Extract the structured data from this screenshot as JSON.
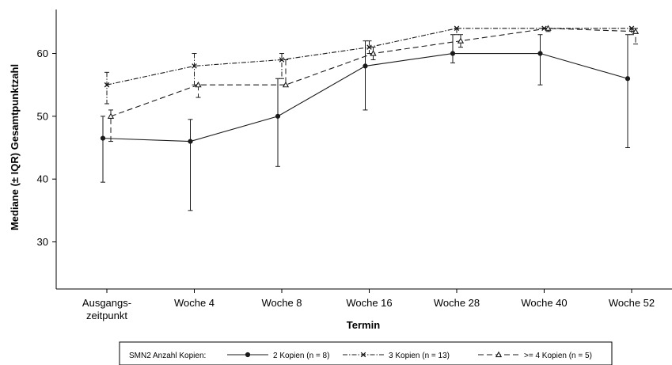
{
  "chart_data": {
    "type": "line",
    "title": "",
    "xlabel": "Termin",
    "ylabel": "Mediane (± IQR) Gesamtpunktzahl",
    "ylim": [
      22.5,
      67
    ],
    "y_ticks": [
      30,
      40,
      50,
      60
    ],
    "grid": false,
    "categories": [
      [
        "Ausgangs-",
        "zeitpunkt"
      ],
      [
        "Woche 4"
      ],
      [
        "Woche 8"
      ],
      [
        "Woche 16"
      ],
      [
        "Woche 28"
      ],
      [
        "Woche 40"
      ],
      [
        "Woche 52"
      ]
    ],
    "legend": {
      "title": "SMN2 Anzahl Kopien:",
      "position": "bottom"
    },
    "series": [
      {
        "name": "2 Kopien (n = 8)",
        "marker": "circle",
        "dash": "solid",
        "color": "#1a1a1a",
        "values": [
          46.5,
          46,
          50,
          58,
          60,
          60,
          56
        ],
        "iqr_low": [
          39.5,
          35,
          42,
          51,
          58.5,
          55,
          45
        ],
        "iqr_high": [
          50,
          49.5,
          56,
          62,
          63,
          63,
          63
        ]
      },
      {
        "name": "3 Kopien (n = 13)",
        "marker": "x",
        "dash": "dashdot",
        "color": "#1a1a1a",
        "values": [
          55,
          58,
          59,
          61,
          64,
          64,
          64
        ],
        "iqr_low": [
          52,
          55,
          56,
          60,
          63,
          64,
          63
        ],
        "iqr_high": [
          57,
          60,
          60,
          62,
          64,
          64,
          64
        ]
      },
      {
        "name": ">= 4 Kopien (n = 5)",
        "marker": "triangle",
        "dash": "dashed",
        "color": "#1a1a1a",
        "values": [
          50,
          55,
          55,
          60,
          62,
          64,
          63.5
        ],
        "iqr_low": [
          46,
          53,
          55,
          59,
          61,
          63.5,
          61.5
        ],
        "iqr_high": [
          51,
          55,
          59,
          61,
          63,
          64,
          64
        ]
      }
    ]
  }
}
